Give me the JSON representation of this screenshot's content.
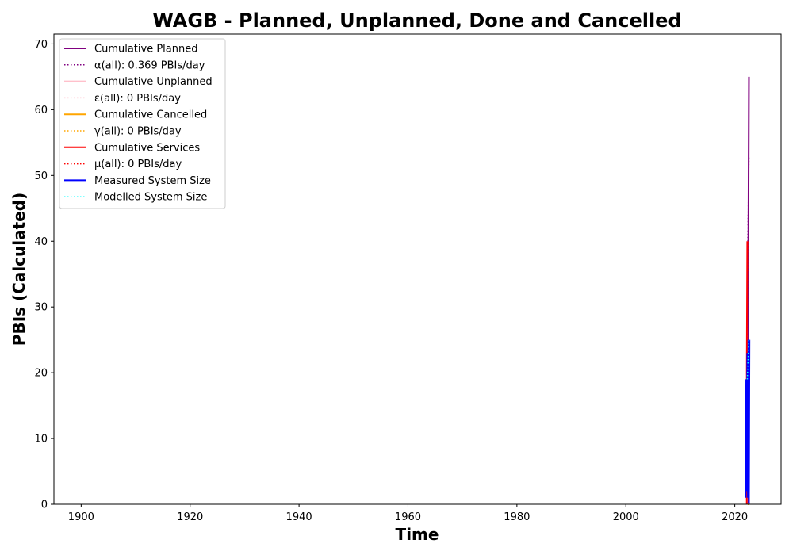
{
  "chart_data": {
    "type": "line",
    "title": "WAGB - Planned, Unplanned, Done  and Cancelled",
    "xlabel": "Time",
    "ylabel": "PBIs (Calculated)",
    "xlim": [
      1895,
      2028.5
    ],
    "ylim": [
      0,
      71.5
    ],
    "xticks": [
      1900,
      1920,
      1940,
      1960,
      1980,
      2000,
      2020
    ],
    "yticks": [
      0,
      10,
      20,
      30,
      40,
      50,
      60,
      70
    ],
    "grid": false,
    "legend_position": "top-left",
    "series": [
      {
        "name": "Cumulative Planned",
        "color": "#800080",
        "style": "solid",
        "x": [
          2022.5,
          2022.5,
          2022.6
        ],
        "y": [
          0,
          41,
          65
        ]
      },
      {
        "name": "α(all): 0.369 PBIs/day",
        "color": "#800080",
        "style": "dotted",
        "x": [
          2022.4,
          2022.6
        ],
        "y": [
          40,
          53
        ]
      },
      {
        "name": "Cumulative Unplanned",
        "color": "#ffc0cb",
        "style": "solid",
        "x": [
          2022.4,
          2022.6
        ],
        "y": [
          0,
          0
        ]
      },
      {
        "name": "ε(all): 0 PBIs/day",
        "color": "#ffc0cb",
        "style": "dotted",
        "x": [
          2022.4,
          2022.6
        ],
        "y": [
          0,
          0
        ]
      },
      {
        "name": "Cumulative Cancelled",
        "color": "#ffa500",
        "style": "solid",
        "x": [
          2022.4,
          2022.6
        ],
        "y": [
          0,
          0
        ]
      },
      {
        "name": "γ(all): 0 PBIs/day",
        "color": "#ffa500",
        "style": "dotted",
        "x": [
          2022.4,
          2022.6
        ],
        "y": [
          0,
          0
        ]
      },
      {
        "name": "Cumulative Services",
        "color": "#ff0000",
        "style": "solid",
        "x": [
          2022.2,
          2022.2,
          2022.3
        ],
        "y": [
          0,
          20,
          40
        ]
      },
      {
        "name": "μ(all): 0 PBIs/day",
        "color": "#ff0000",
        "style": "dotted",
        "x": [
          2022.2,
          2022.4
        ],
        "y": [
          20,
          40
        ]
      },
      {
        "name": "Measured System Size",
        "color": "#0000ff",
        "style": "solid",
        "x": [
          2022.0,
          2022.1,
          2022.2,
          2022.3,
          2022.4,
          2022.5,
          2022.6,
          2022.7
        ],
        "y": [
          1,
          19,
          2,
          23,
          1,
          25,
          0,
          25
        ]
      },
      {
        "name": "Modelled System Size",
        "color": "#00ffff",
        "style": "dotted",
        "x": [
          2022.3,
          2022.6
        ],
        "y": [
          19,
          25
        ]
      }
    ]
  }
}
